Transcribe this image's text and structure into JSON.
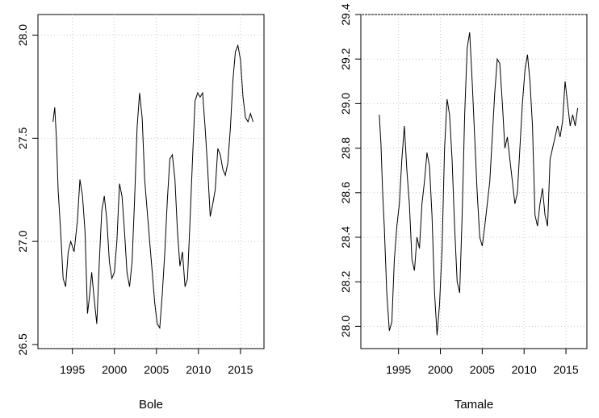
{
  "chart_data": [
    {
      "type": "line",
      "xlabel": "Bole",
      "ylabel": "",
      "xlim": [
        1990.9,
        2017.8
      ],
      "ylim": [
        26.48,
        28.1
      ],
      "x_ticks": [
        1995,
        2000,
        2005,
        2010,
        2015
      ],
      "y_ticks": [
        26.5,
        27.0,
        27.5,
        28.0
      ],
      "grid": true,
      "line_color": "#000000",
      "series": [
        {
          "x": [
            1992.7,
            1992.9,
            1993.1,
            1993.3,
            1993.6,
            1993.9,
            1994.2,
            1994.5,
            1994.8,
            1995.2,
            1995.6,
            1995.9,
            1996.2,
            1996.5,
            1996.8,
            1997.0,
            1997.3,
            1997.6,
            1997.9,
            1998.2,
            1998.5,
            1998.8,
            1999.1,
            1999.4,
            1999.7,
            2000.0,
            2000.3,
            2000.6,
            2000.9,
            2001.2,
            2001.5,
            2001.8,
            2002.1,
            2002.4,
            2002.7,
            2003.0,
            2003.3,
            2003.6,
            2003.9,
            2004.2,
            2004.5,
            2004.8,
            2005.1,
            2005.4,
            2005.7,
            2006.0,
            2006.3,
            2006.6,
            2006.9,
            2007.2,
            2007.5,
            2007.8,
            2008.1,
            2008.4,
            2008.7,
            2009.0,
            2009.3,
            2009.6,
            2009.9,
            2010.2,
            2010.5,
            2010.8,
            2011.1,
            2011.4,
            2011.7,
            2012.0,
            2012.3,
            2012.6,
            2012.9,
            2013.2,
            2013.5,
            2013.8,
            2014.1,
            2014.4,
            2014.7,
            2015.0,
            2015.3,
            2015.6,
            2015.9,
            2016.2,
            2016.5
          ],
          "values": [
            27.58,
            27.65,
            27.5,
            27.25,
            27.05,
            26.82,
            26.78,
            26.95,
            27.0,
            26.95,
            27.1,
            27.3,
            27.22,
            27.05,
            26.65,
            26.72,
            26.85,
            26.72,
            26.6,
            26.9,
            27.15,
            27.22,
            27.1,
            26.9,
            26.82,
            26.85,
            27.0,
            27.28,
            27.22,
            27.05,
            26.85,
            26.78,
            26.9,
            27.2,
            27.55,
            27.72,
            27.6,
            27.3,
            27.15,
            27.0,
            26.85,
            26.7,
            26.6,
            26.58,
            26.75,
            26.95,
            27.2,
            27.4,
            27.42,
            27.3,
            27.05,
            26.88,
            26.95,
            26.78,
            26.82,
            27.1,
            27.4,
            27.68,
            27.72,
            27.7,
            27.72,
            27.55,
            27.35,
            27.12,
            27.18,
            27.25,
            27.45,
            27.42,
            27.35,
            27.32,
            27.38,
            27.55,
            27.78,
            27.92,
            27.95,
            27.88,
            27.7,
            27.6,
            27.58,
            27.62,
            27.58
          ]
        }
      ]
    },
    {
      "type": "line",
      "xlabel": "Tamale",
      "ylabel": "",
      "xlim": [
        1990.5,
        2017.5
      ],
      "ylim": [
        27.9,
        29.4
      ],
      "x_ticks": [
        1995,
        2000,
        2005,
        2010,
        2015
      ],
      "y_ticks": [
        28.0,
        28.2,
        28.4,
        28.6,
        28.8,
        29.0,
        29.2,
        29.4
      ],
      "grid": true,
      "line_color": "#000000",
      "series": [
        {
          "x": [
            1992.7,
            1992.9,
            1993.1,
            1993.3,
            1993.6,
            1993.9,
            1994.2,
            1994.5,
            1994.8,
            1995.1,
            1995.4,
            1995.7,
            1996.0,
            1996.3,
            1996.6,
            1996.9,
            1997.2,
            1997.5,
            1997.8,
            1998.1,
            1998.4,
            1998.7,
            1999.0,
            1999.3,
            1999.6,
            1999.9,
            2000.2,
            2000.5,
            2000.8,
            2001.1,
            2001.4,
            2001.7,
            2002.0,
            2002.3,
            2002.6,
            2002.9,
            2003.2,
            2003.5,
            2003.8,
            2004.1,
            2004.4,
            2004.7,
            2005.0,
            2005.3,
            2005.6,
            2005.9,
            2006.2,
            2006.5,
            2006.8,
            2007.1,
            2007.4,
            2007.7,
            2008.0,
            2008.3,
            2008.6,
            2008.9,
            2009.2,
            2009.5,
            2009.8,
            2010.1,
            2010.4,
            2010.7,
            2011.0,
            2011.3,
            2011.6,
            2011.9,
            2012.2,
            2012.5,
            2012.8,
            2013.1,
            2013.4,
            2013.7,
            2014.0,
            2014.3,
            2014.6,
            2014.9,
            2015.2,
            2015.5,
            2015.8,
            2016.1,
            2016.4
          ],
          "values": [
            28.95,
            28.82,
            28.6,
            28.45,
            28.15,
            27.98,
            28.02,
            28.3,
            28.45,
            28.55,
            28.75,
            28.9,
            28.7,
            28.55,
            28.3,
            28.25,
            28.4,
            28.35,
            28.55,
            28.65,
            28.78,
            28.72,
            28.5,
            28.15,
            27.96,
            28.1,
            28.35,
            28.8,
            29.02,
            28.95,
            28.75,
            28.45,
            28.2,
            28.15,
            28.5,
            28.95,
            29.25,
            29.32,
            29.1,
            28.85,
            28.6,
            28.4,
            28.36,
            28.45,
            28.55,
            28.65,
            28.85,
            29.05,
            29.2,
            29.18,
            29.0,
            28.8,
            28.85,
            28.75,
            28.65,
            28.55,
            28.6,
            28.8,
            29.0,
            29.15,
            29.22,
            29.1,
            28.9,
            28.5,
            28.45,
            28.55,
            28.62,
            28.5,
            28.45,
            28.75,
            28.8,
            28.85,
            28.9,
            28.85,
            28.92,
            29.1,
            29.0,
            28.9,
            28.95,
            28.9,
            28.98
          ]
        }
      ]
    }
  ]
}
